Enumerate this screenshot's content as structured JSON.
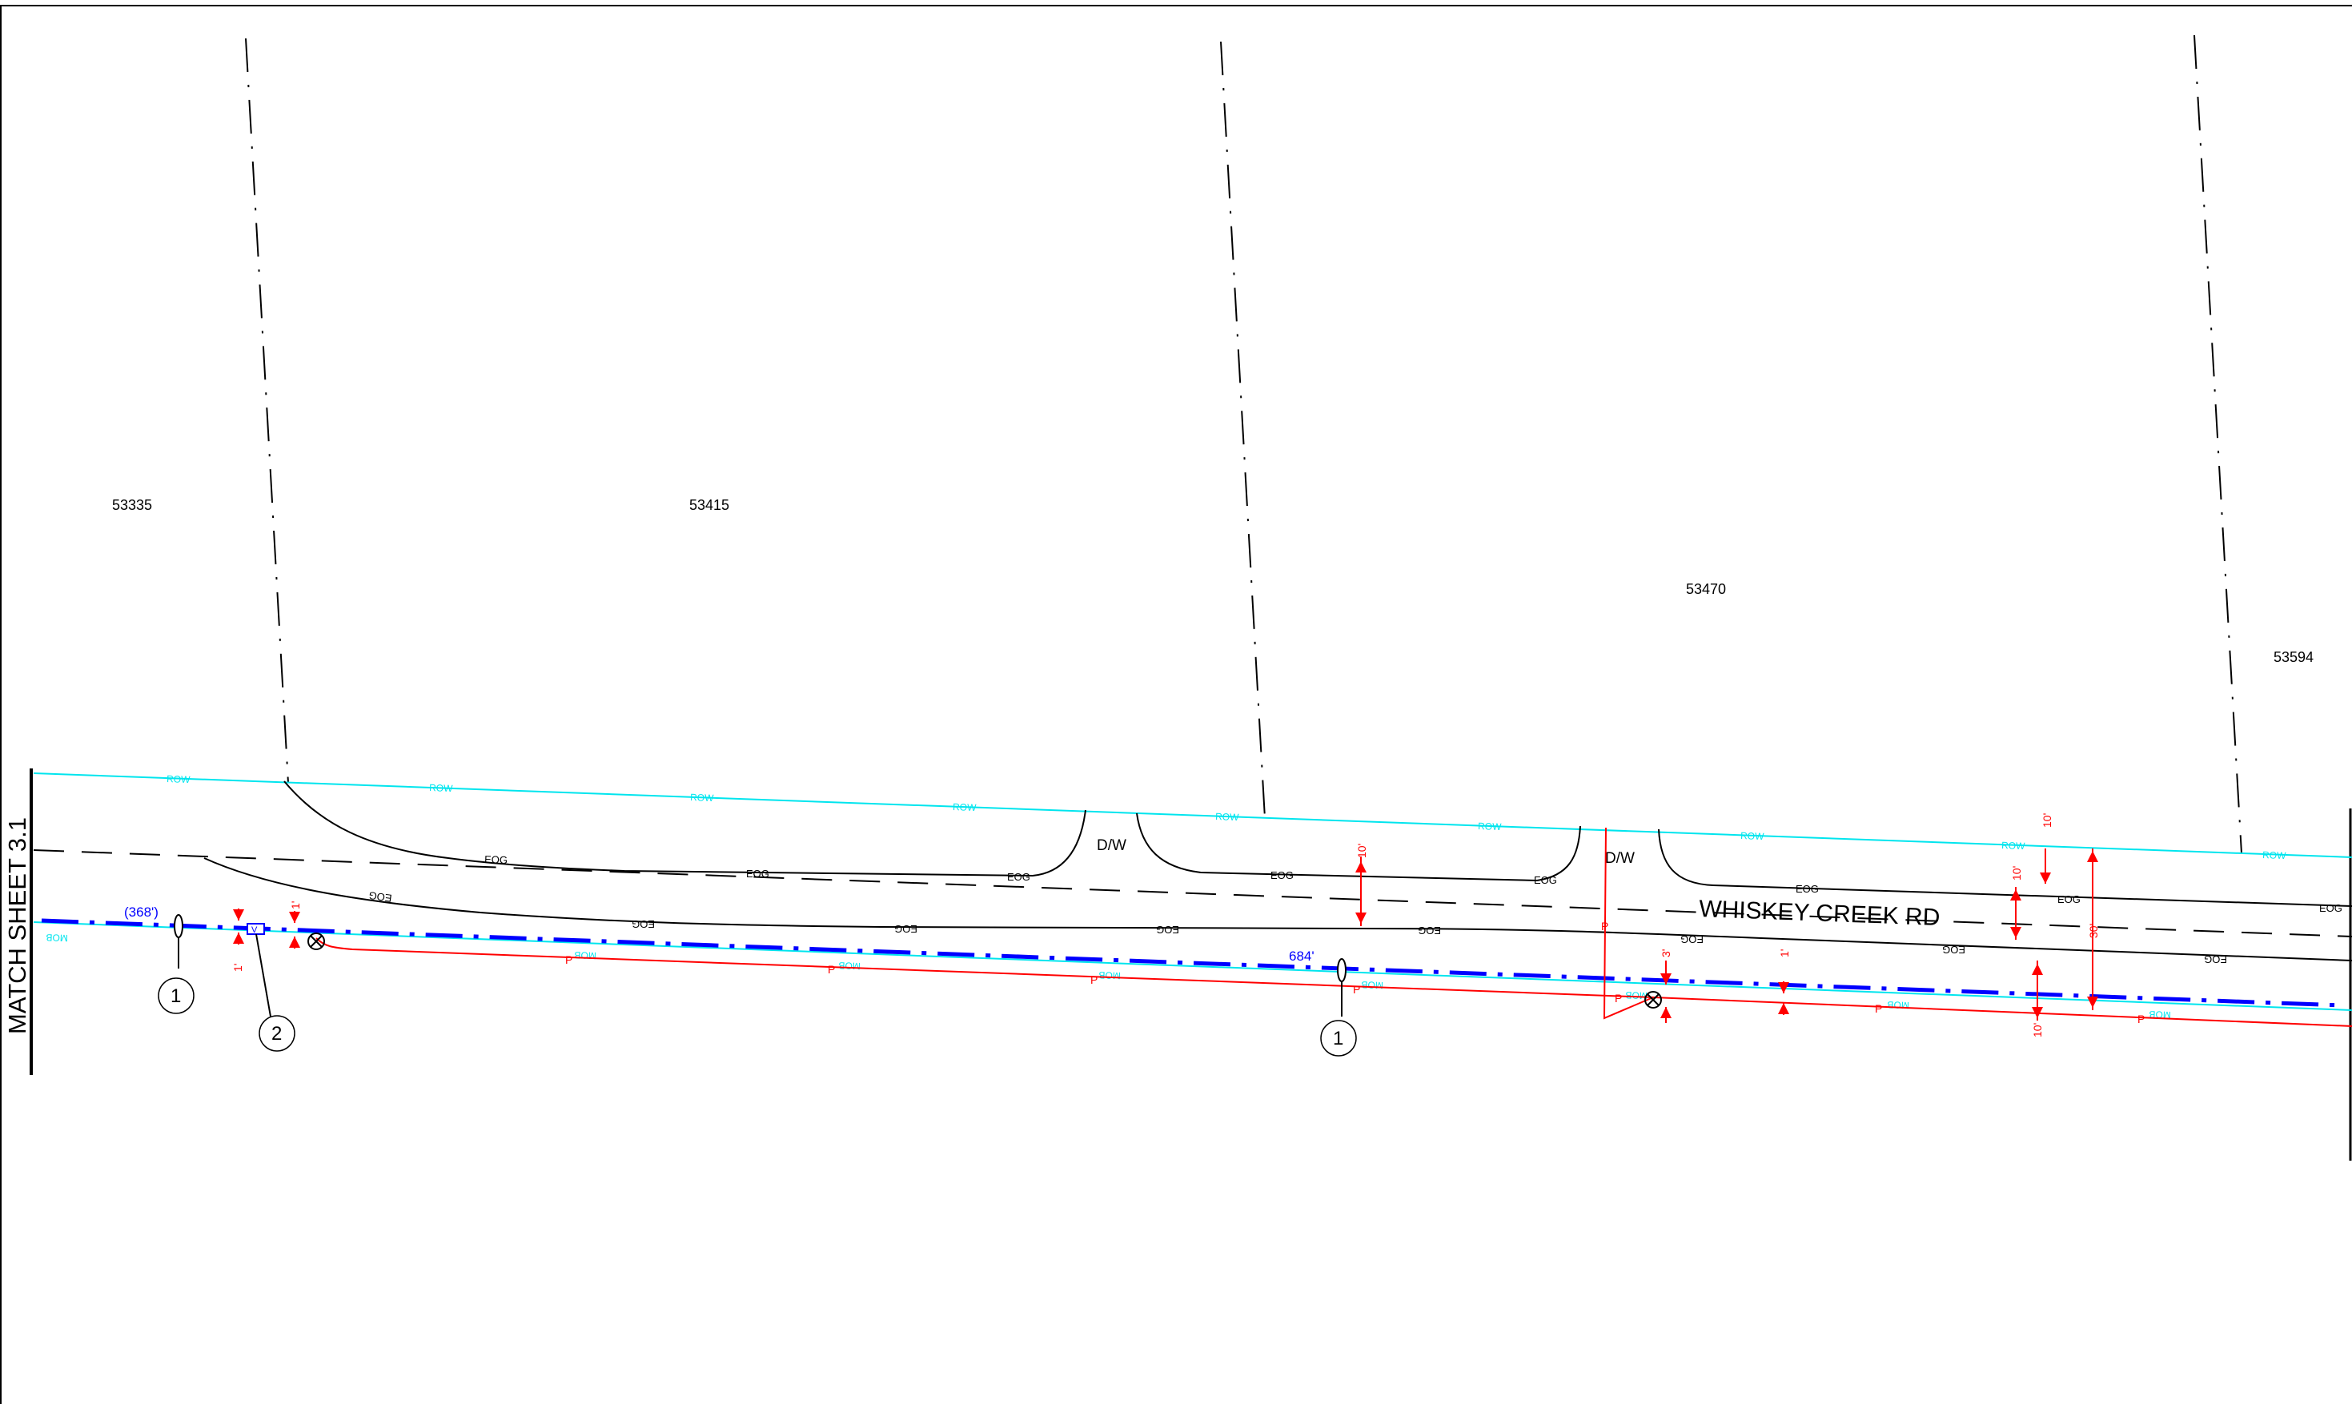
{
  "sheet": {
    "match_sheet": "MATCH SHEET 3.1",
    "road_name": "WHISKEY CREEK RD"
  },
  "parcels": [
    "53335",
    "53415",
    "53470",
    "53594"
  ],
  "linetypes": {
    "row": "ROW",
    "eog": "EOG",
    "mob": "MOB",
    "power": "P",
    "driveway": "D/W"
  },
  "stations": {
    "start": "(368')",
    "mid": "684'"
  },
  "callouts": {
    "one": "1",
    "two": "2"
  },
  "vault_letter": "V",
  "dimensions": {
    "one_ft": "1'",
    "three_ft": "3'",
    "ten_ft": "10'",
    "thirty_ft": "30'"
  },
  "colors": {
    "row_line": "#00e5ee",
    "proposed_fiber": "#0000ff",
    "power_line": "#ff0000",
    "linework": "#000000"
  },
  "icon_names": [
    "pole-crossed-circle-icon",
    "handhole-ellipse-icon",
    "vault-box-icon",
    "dimension-arrow-icon"
  ]
}
